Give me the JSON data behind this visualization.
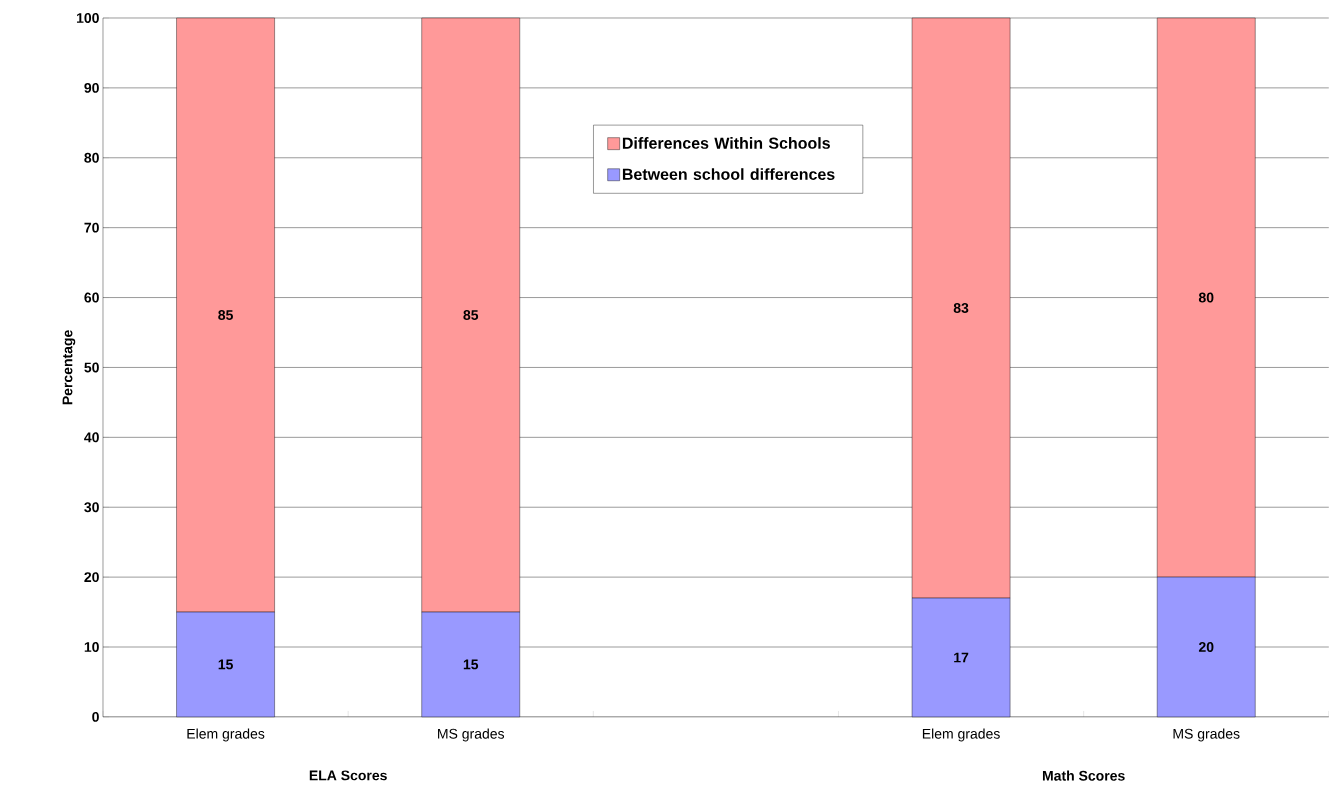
{
  "chart_data": {
    "type": "bar",
    "stacked": true,
    "ylabel": "Percentage",
    "categories": [
      "Elem grades",
      "MS grades",
      null,
      "Elem grades",
      "MS grades"
    ],
    "series": [
      {
        "name": "Between school differences",
        "color": "#9999ff",
        "values": [
          15,
          15,
          null,
          17,
          20
        ]
      },
      {
        "name": "Differences Within Schools",
        "color": "#ff9999",
        "values": [
          85,
          85,
          null,
          83,
          80
        ]
      }
    ],
    "ylim": [
      0,
      100
    ],
    "yticks": [
      0,
      10,
      20,
      30,
      40,
      50,
      60,
      70,
      80,
      90,
      100
    ],
    "grid": "y",
    "legend": "top",
    "data_labels": true,
    "annotations": [
      "ELA Scores",
      "Math Scores"
    ]
  }
}
